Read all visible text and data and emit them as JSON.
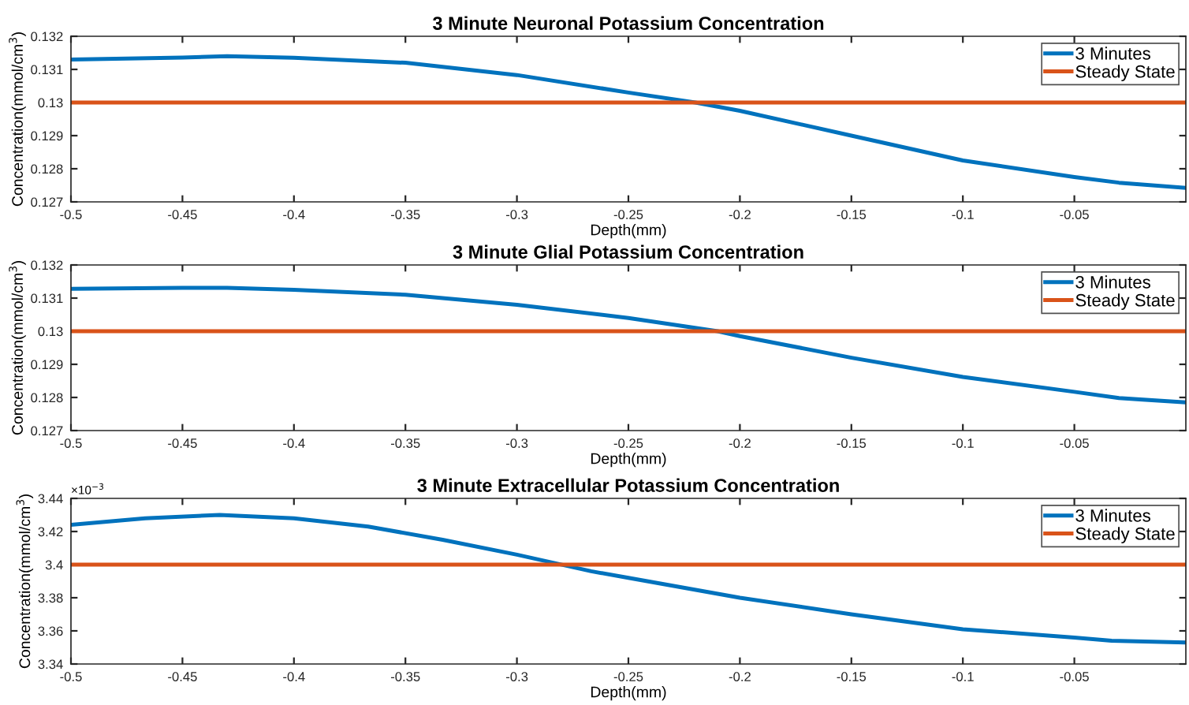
{
  "chart_data": [
    {
      "type": "line",
      "title": "3 Minute Neuronal Potassium Concentration",
      "xlabel": "Depth(mm)",
      "ylabel": "Concentration(mmol/cm$^{3}$)",
      "xlim": [
        -0.5,
        0
      ],
      "xticks": [
        -0.5,
        -0.45,
        -0.4,
        -0.35,
        -0.3,
        -0.25,
        -0.2,
        -0.15,
        -0.1,
        -0.05
      ],
      "ylim": [
        0.127,
        0.132
      ],
      "yticks": [
        0.127,
        0.128,
        0.129,
        0.13,
        0.131,
        0.132
      ],
      "legend": "top right",
      "grid": false,
      "series": [
        {
          "name": "3 Minutes",
          "color": "#0072bd",
          "x": [
            -0.5,
            -0.45,
            -0.43,
            -0.4,
            -0.35,
            -0.3,
            -0.25,
            -0.22,
            -0.2,
            -0.15,
            -0.1,
            -0.05,
            -0.03,
            0
          ],
          "values": [
            0.1313,
            0.13136,
            0.1314,
            0.13135,
            0.1312,
            0.13083,
            0.1303,
            0.13,
            0.12975,
            0.129,
            0.12825,
            0.12775,
            0.12758,
            0.12742
          ]
        },
        {
          "name": "Steady State",
          "color": "#d95319",
          "x": [
            -0.5,
            0
          ],
          "values": [
            0.13,
            0.13
          ]
        }
      ]
    },
    {
      "type": "line",
      "title": "3 Minute Glial Potassium Concentration",
      "xlabel": "Depth(mm)",
      "ylabel": "Concentration(mmol/cm$^{3}$)",
      "xlim": [
        -0.5,
        0
      ],
      "xticks": [
        -0.5,
        -0.45,
        -0.4,
        -0.35,
        -0.3,
        -0.25,
        -0.2,
        -0.15,
        -0.1,
        -0.05
      ],
      "ylim": [
        0.127,
        0.132
      ],
      "yticks": [
        0.127,
        0.128,
        0.129,
        0.13,
        0.131,
        0.132
      ],
      "legend": "top right",
      "grid": false,
      "series": [
        {
          "name": "3 Minutes",
          "color": "#0072bd",
          "x": [
            -0.5,
            -0.45,
            -0.43,
            -0.4,
            -0.35,
            -0.3,
            -0.25,
            -0.21,
            -0.2,
            -0.15,
            -0.1,
            -0.05,
            -0.03,
            0
          ],
          "values": [
            0.13128,
            0.13131,
            0.13131,
            0.13125,
            0.1311,
            0.1308,
            0.1304,
            0.13,
            0.12985,
            0.1292,
            0.12862,
            0.12817,
            0.12798,
            0.12785
          ]
        },
        {
          "name": "Steady State",
          "color": "#d95319",
          "x": [
            -0.5,
            0
          ],
          "values": [
            0.13,
            0.13
          ]
        }
      ]
    },
    {
      "type": "line",
      "title": "3 Minute Extracellular Potassium Concentration",
      "xlabel": "Depth(mm)",
      "ylabel": "Concentration(mmol/cm$^{3}$)",
      "annotations": [
        "×10$^{−3}$"
      ],
      "xlim": [
        -0.5,
        0
      ],
      "xticks": [
        -0.5,
        -0.45,
        -0.4,
        -0.35,
        -0.3,
        -0.25,
        -0.2,
        -0.15,
        -0.1,
        -0.05
      ],
      "ylim": [
        3.34,
        3.44
      ],
      "yticks": [
        3.34,
        3.36,
        3.38,
        3.4,
        3.42,
        3.44
      ],
      "legend": "top right",
      "grid": false,
      "series": [
        {
          "name": "3 Minutes",
          "color": "#0072bd",
          "x": [
            -0.5,
            -0.4667,
            -0.4333,
            -0.4,
            -0.3667,
            -0.3333,
            -0.3,
            -0.2667,
            -0.25,
            -0.2,
            -0.15,
            -0.1,
            -0.05,
            -0.0333,
            0
          ],
          "values": [
            3.424,
            3.428,
            3.43,
            3.428,
            3.423,
            3.415,
            3.406,
            3.396,
            3.392,
            3.38,
            3.37,
            3.361,
            3.356,
            3.354,
            3.353
          ]
        },
        {
          "name": "Steady State",
          "color": "#d95319",
          "x": [
            -0.5,
            0
          ],
          "values": [
            3.4,
            3.4
          ]
        }
      ]
    }
  ]
}
